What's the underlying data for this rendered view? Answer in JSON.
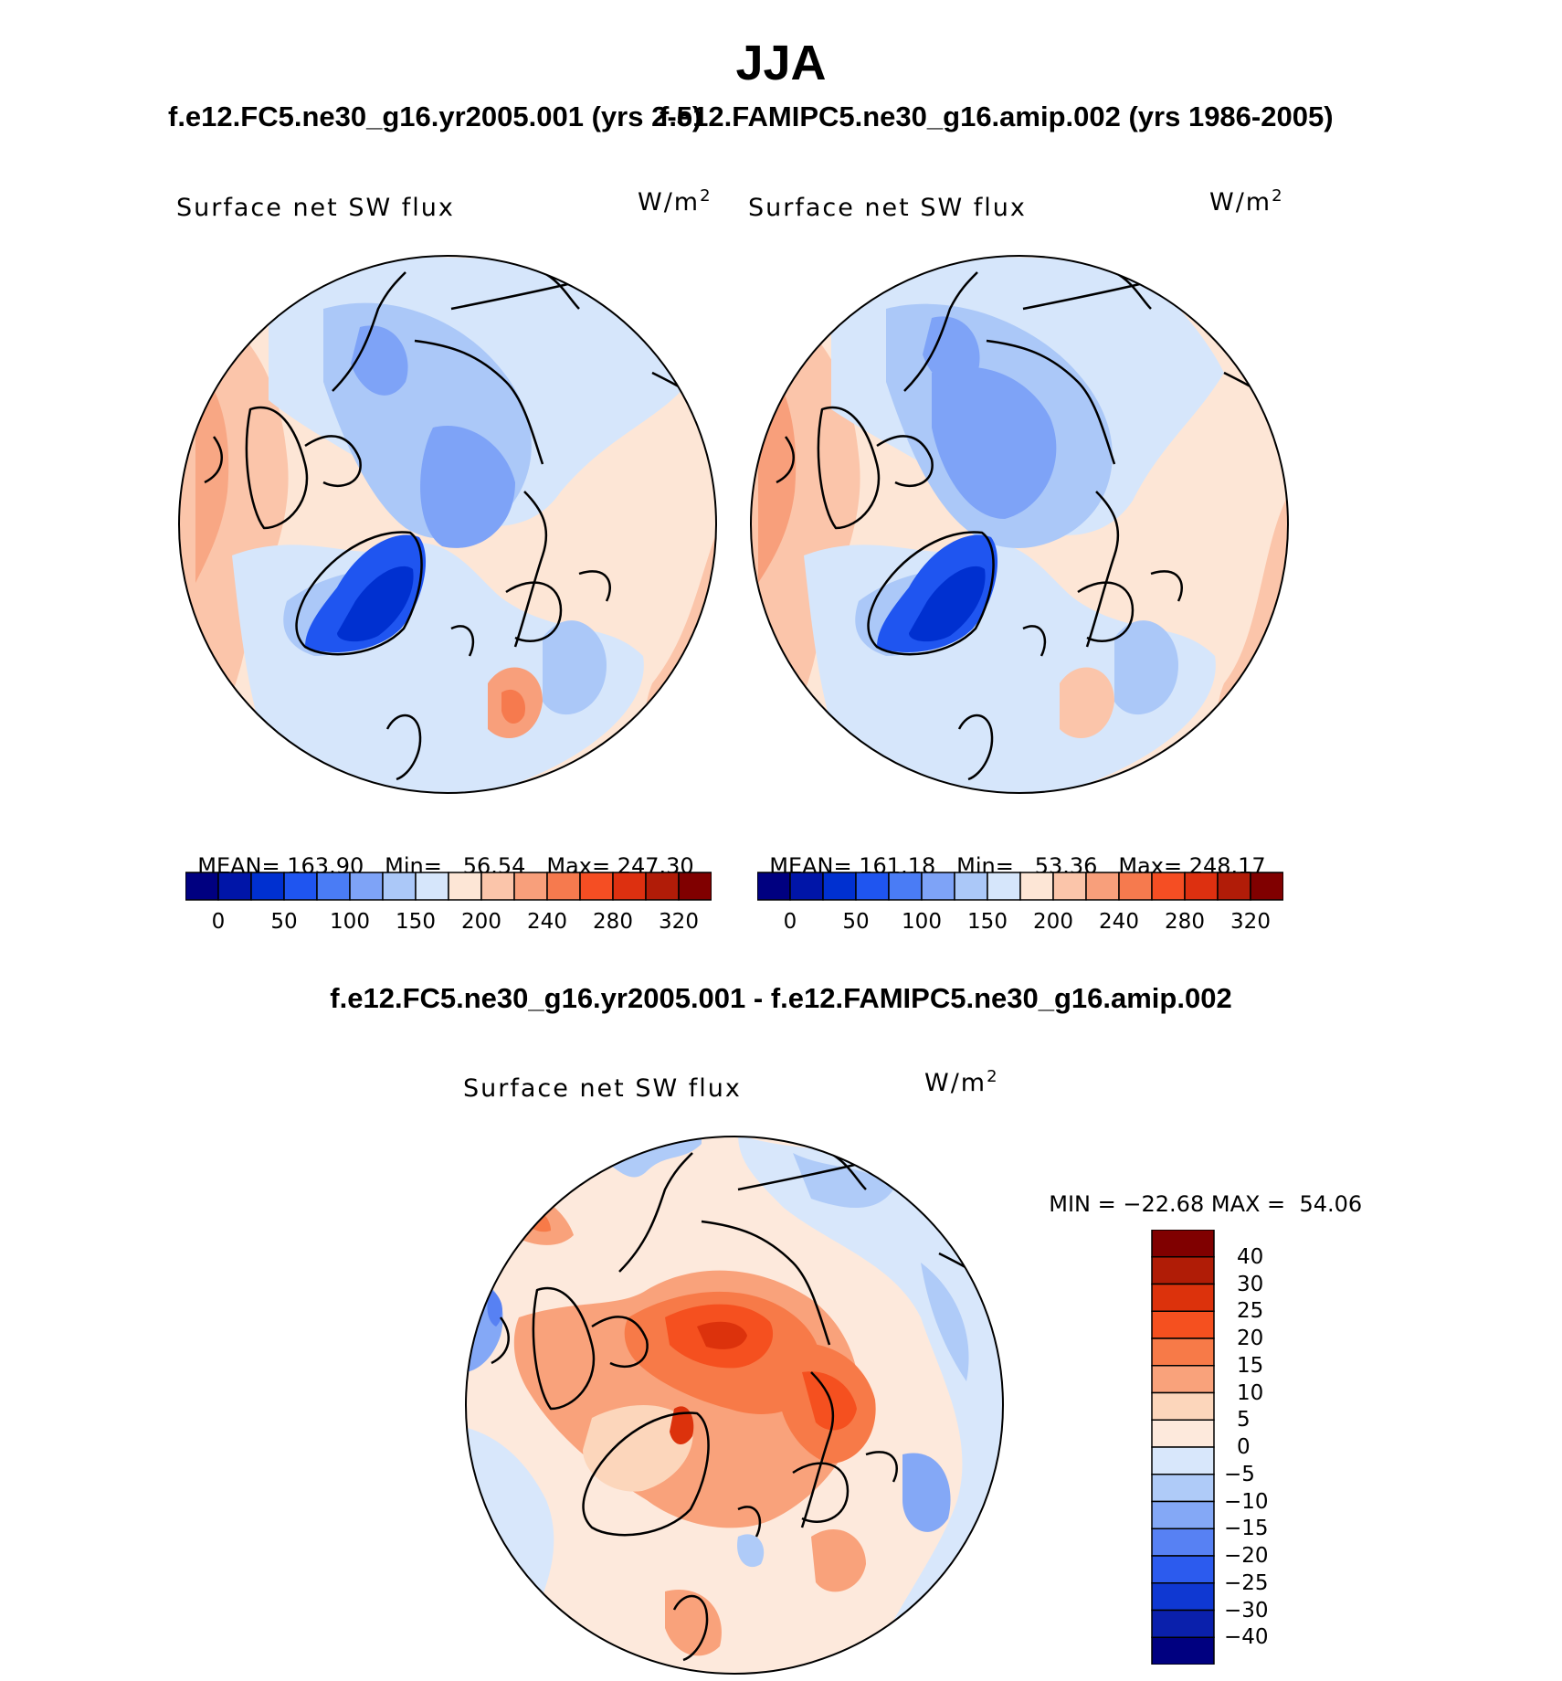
{
  "figure": {
    "title": "JJA",
    "case_left_title": "f.e12.FC5.ne30_g16.yr2005.001 (yrs 2-5)",
    "case_right_title": "f.e12.FAMIPC5.ne30_g16.amip.002 (yrs 1986-2005)",
    "diff_title": "f.e12.FC5.ne30_g16.yr2005.001 - f.e12.FAMIPC5.ne30_g16.amip.002"
  },
  "panels": [
    {
      "variable": "Surface net SW flux",
      "units_base": "W/m",
      "units_exp": "2",
      "stats": {
        "mean_label": "MEAN=",
        "mean": "163.90",
        "min_label": "Min=",
        "min": "56.54",
        "max_label": "Max=",
        "max": "247.30"
      }
    },
    {
      "variable": "Surface net SW flux",
      "units_base": "W/m",
      "units_exp": "2",
      "stats": {
        "mean_label": "MEAN=",
        "mean": "161.18",
        "min_label": "Min=",
        "min": "53.36",
        "max_label": "Max=",
        "max": "248.17"
      }
    }
  ],
  "diff_panel": {
    "variable": "Surface net SW flux",
    "units_base": "W/m",
    "units_exp": "2",
    "min_label": "MIN =",
    "min": "−22.68",
    "max_label": "MAX =",
    "max": "54.06"
  },
  "colorbar_main": {
    "labels": [
      "0",
      "50",
      "100",
      "150",
      "200",
      "240",
      "280",
      "320"
    ],
    "colors": [
      "#000080",
      "#0015a8",
      "#0030d0",
      "#1f55f0",
      "#4a7cf5",
      "#7ea3f7",
      "#abc8f8",
      "#d6e6fb",
      "#fde6d6",
      "#fbc5aa",
      "#f89f7b",
      "#f67a4e",
      "#f54e23",
      "#dd3010",
      "#b11c08",
      "#800000"
    ]
  },
  "colorbar_diff": {
    "labels": [
      "40",
      "30",
      "25",
      "20",
      "15",
      "10",
      "5",
      "0",
      "−5",
      "−10",
      "−15",
      "−20",
      "−25",
      "−30",
      "−40"
    ],
    "colors": [
      "#800000",
      "#b01c06",
      "#dc320c",
      "#f5501f",
      "#f77a48",
      "#f9a27b",
      "#fcd6bb",
      "#fde9dc",
      "#d8e7fb",
      "#afcbf8",
      "#84a8f6",
      "#5781f3",
      "#2c5bee",
      "#0f38d2",
      "#0a20ac",
      "#000080"
    ]
  }
}
